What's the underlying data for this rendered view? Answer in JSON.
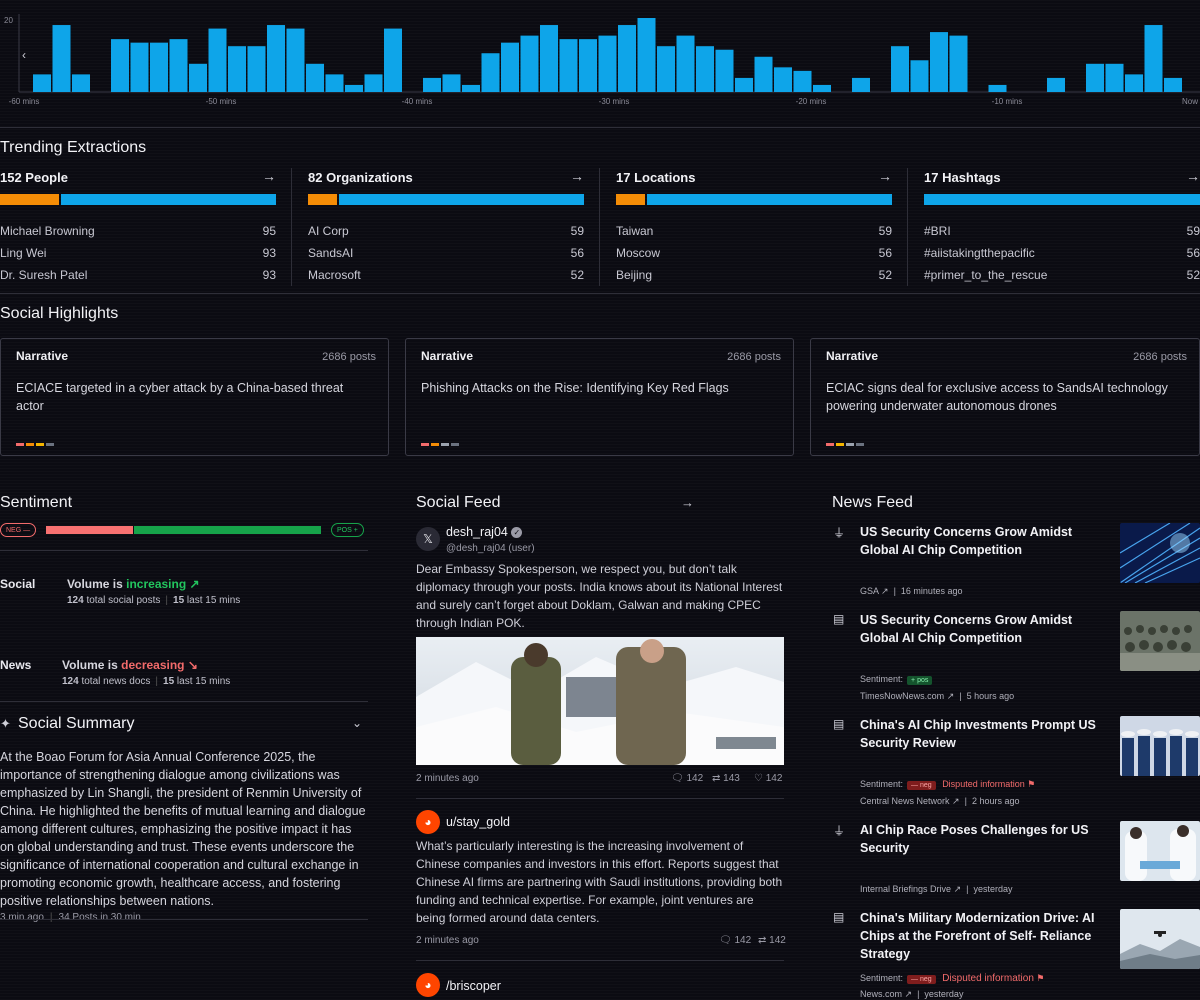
{
  "histogram": {
    "y_max_label": "20",
    "values": [
      5,
      19,
      5,
      0,
      15,
      14,
      14,
      15,
      8,
      18,
      13,
      13,
      19,
      18,
      8,
      5,
      2,
      5,
      18,
      0,
      4,
      5,
      2,
      11,
      14,
      16,
      19,
      15,
      15,
      16,
      19,
      21,
      13,
      16,
      13,
      12,
      4,
      10,
      7,
      6,
      2,
      0,
      4,
      0,
      13,
      9,
      17,
      16,
      0,
      2,
      0,
      0,
      4,
      0,
      8,
      8,
      5,
      19,
      4,
      0,
      16,
      11,
      5,
      21,
      3,
      0,
      0,
      0,
      0,
      0
    ],
    "ticks": [
      "-60 mins",
      "-50 mins",
      "-40 mins",
      "-30 mins",
      "-20 mins",
      "-10 mins",
      "Now"
    ],
    "color": "#0ea5e9"
  },
  "trending": {
    "title": "Trending Extractions",
    "columns": [
      {
        "heading": "152 People",
        "rows": [
          {
            "name": "Michael Browning",
            "value": "95"
          },
          {
            "name": "Ling Wei",
            "value": "93"
          },
          {
            "name": "Dr. Suresh Patel",
            "value": "93"
          }
        ],
        "share": 0.21
      },
      {
        "heading": "82 Organizations",
        "rows": [
          {
            "name": "AI Corp",
            "value": "59"
          },
          {
            "name": "SandsAI",
            "value": "56"
          },
          {
            "name": "Macrosoft",
            "value": "52"
          }
        ],
        "share": 0.11
      },
      {
        "heading": "17 Locations",
        "rows": [
          {
            "name": "Taiwan",
            "value": "59"
          },
          {
            "name": "Moscow",
            "value": "56"
          },
          {
            "name": "Beijing",
            "value": "52"
          }
        ],
        "share": 0.11
      },
      {
        "heading": "17 Hashtags",
        "rows": [
          {
            "name": "#BRI",
            "value": "59"
          },
          {
            "name": "#aiistakingtthepacific",
            "value": "56"
          },
          {
            "name": "#primer_to_the_rescue",
            "value": "52"
          }
        ],
        "share": 0.0
      }
    ],
    "arrow": "→"
  },
  "social_highlights": {
    "title": "Social Highlights",
    "cards": [
      {
        "label": "Narrative",
        "posts": "2686 posts",
        "text": "ECIACE targeted in a cyber attack by a China-based threat actor",
        "dots": [
          "#f26b6b",
          "#f48c06",
          "#f4b400",
          "#6b7280"
        ]
      },
      {
        "label": "Narrative",
        "posts": "2686 posts",
        "text": "Phishing Attacks on the Rise: Identifying Key Red Flags",
        "dots": [
          "#f26b6b",
          "#f48c06",
          "#9ca3af",
          "#6b7280"
        ]
      },
      {
        "label": "Narrative",
        "posts": "2686 posts",
        "text": "ECIAC signs deal for exclusive access to SandsAI technology powering underwater autonomous drones",
        "dots": [
          "#f26b6b",
          "#f4b400",
          "#9ca3af",
          "#6b7280"
        ]
      }
    ]
  },
  "sentiment": {
    "title": "Sentiment",
    "neg_label": "NEG",
    "pos_label": "POS",
    "neg_share": 0.31,
    "social": {
      "label": "Social",
      "volume_prefix": "Volume is ",
      "trend": "increasing",
      "total_num": "124",
      "total_label": " total social posts",
      "last_num": "15",
      "last_label": " last 15 mins"
    },
    "news": {
      "label": "News",
      "volume_prefix": "Volume is ",
      "trend": "decreasing",
      "total_num": "124",
      "total_label": " total news docs",
      "last_num": "15",
      "last_label": " last 15 mins"
    }
  },
  "social_summary": {
    "title": "Social Summary",
    "text": "At the Boao Forum for Asia Annual Conference 2025, the importance of strengthening dialogue among civilizations was emphasized by Lin Shangli, the president of Renmin University of China. He highlighted the benefits of mutual learning and dialogue among different cultures, emphasizing the positive impact it has on global understanding and trust. These events underscore the significance of international cooperation and cultural exchange in promoting economic growth, healthcare access, and fostering positive relationships between nations.",
    "time": "3 min ago",
    "posts": "34 Posts in 30 min"
  },
  "social_feed": {
    "title": "Social Feed",
    "posts": [
      {
        "user": "desh_raj04",
        "handle": "@desh_raj04 (user)",
        "text": "Dear Embassy Spokesperson, we respect you, but don’t talk diplomacy through your posts. India knows about its National Interest and surely can’t forget about Doklam, Galwan and making CPEC through Indian POK.",
        "time": "2 minutes ago",
        "comments": "142",
        "reposts": "143",
        "likes": "142"
      },
      {
        "user": "u/stay_gold",
        "text": "What’s particularly interesting is the increasing involvement of Chinese companies and investors in this effort. Reports suggest that Chinese AI firms are partnering with Saudi institutions, providing both funding and technical expertise. For example, joint ventures are being formed around data centers.",
        "time": "2 minutes ago",
        "comments": "142",
        "reposts": "142"
      },
      {
        "user": "/briscoper"
      }
    ]
  },
  "news_feed": {
    "title": "News Feed",
    "items": [
      {
        "title": "US Security Concerns Grow Amidst Global AI Chip Competition",
        "source": "GSA",
        "time": "16  minutes ago"
      },
      {
        "title": "US Security Concerns Grow Amidst Global AI Chip Competition",
        "sentiment_label": "Sentiment:",
        "sentiment": "pos",
        "source": "TimesNowNews.com",
        "time": "5  hours ago"
      },
      {
        "title": "China's AI Chip Investments Prompt US Security Review",
        "sentiment_label": "Sentiment:",
        "sentiment": "neg",
        "disputed": "Disputed information",
        "source": "Central News Network",
        "time": "2  hours ago"
      },
      {
        "title": "AI Chip Race Poses Challenges for US Security",
        "source": "Internal Briefings Drive",
        "time": "yesterday"
      },
      {
        "title": "China's Military Modernization Drive: AI Chips at the Forefront of Self-  Reliance Strategy",
        "sentiment_label": "Sentiment:",
        "sentiment": "neg",
        "disputed": "Disputed information",
        "source": "News.com",
        "time": "yesterday"
      }
    ]
  }
}
